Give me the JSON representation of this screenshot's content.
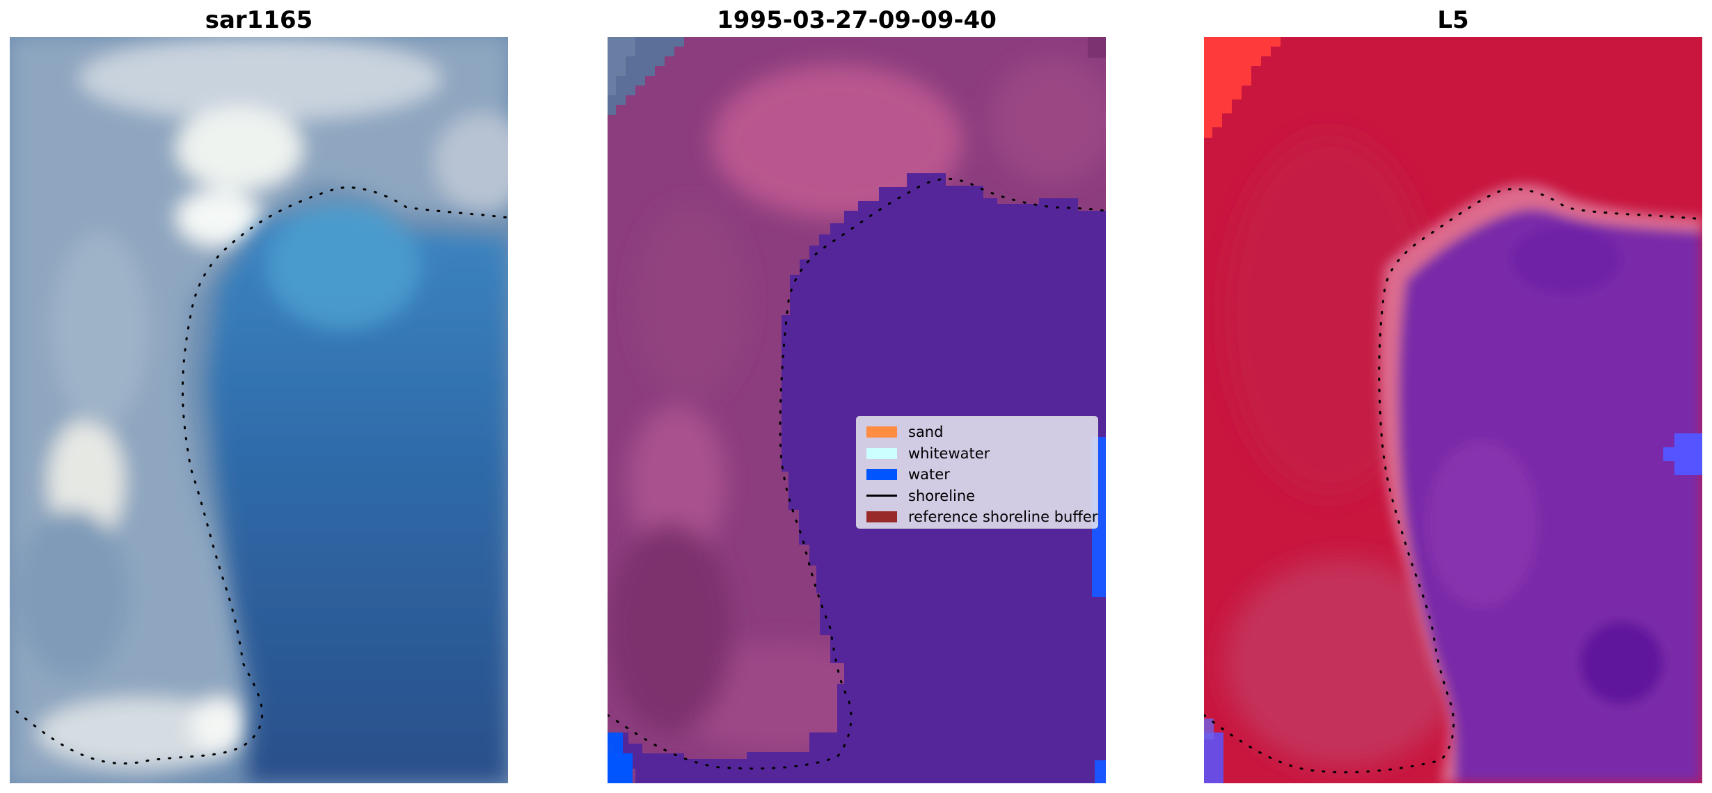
{
  "panels": [
    {
      "title": "sar1165"
    },
    {
      "title": "1995-03-27-09-09-40"
    },
    {
      "title": "L5"
    }
  ],
  "legend": {
    "items": [
      {
        "label": "sand",
        "kind": "patch",
        "color": "#ff8c40"
      },
      {
        "label": "whitewater",
        "kind": "patch",
        "color": "#ccffff"
      },
      {
        "label": "water",
        "kind": "patch",
        "color": "#0055ff"
      },
      {
        "label": "shoreline",
        "kind": "line",
        "color": "#000000"
      },
      {
        "label": "reference shoreline buffer",
        "kind": "patch",
        "color": "#992a2a"
      }
    ]
  },
  "colors": {
    "ocean": "#2f6aa8",
    "classified_water": "#55269a",
    "classified_land": "#8c3d7e",
    "index_land": "#c8163f",
    "index_water": "#7a2aa8",
    "bright_water_edge": "#1a55ff",
    "shoreline_dots": "#000000"
  }
}
